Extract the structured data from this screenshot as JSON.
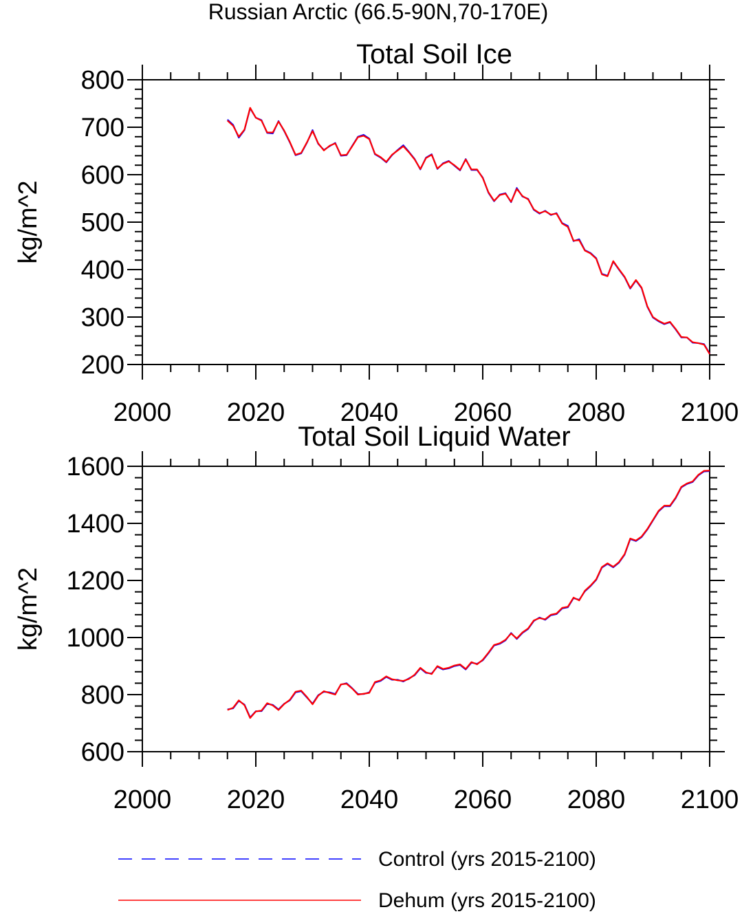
{
  "figure": {
    "suptitle": "Russian Arctic (66.5-90N,70-170E)"
  },
  "legend": [
    {
      "label": "Control (yrs 2015-2100)",
      "color": "#0000ff",
      "dash": "dashed"
    },
    {
      "label": "Dehum (yrs 2015-2100)",
      "color": "#ff0000",
      "dash": "solid"
    }
  ],
  "chart_data": [
    {
      "type": "line",
      "title": "Total Soil Ice",
      "xlabel": "",
      "ylabel": "kg/m^2",
      "xlim": [
        2000,
        2100
      ],
      "ylim": [
        200,
        800
      ],
      "xticks": [
        2000,
        2020,
        2040,
        2060,
        2080,
        2100
      ],
      "yticks": [
        200,
        300,
        400,
        500,
        600,
        700,
        800
      ],
      "grid": false,
      "x": [
        2015,
        2016,
        2017,
        2018,
        2019,
        2020,
        2021,
        2022,
        2023,
        2024,
        2025,
        2026,
        2027,
        2028,
        2029,
        2030,
        2031,
        2032,
        2033,
        2034,
        2035,
        2036,
        2037,
        2038,
        2039,
        2040,
        2041,
        2042,
        2043,
        2044,
        2045,
        2046,
        2047,
        2048,
        2049,
        2050,
        2051,
        2052,
        2053,
        2054,
        2055,
        2056,
        2057,
        2058,
        2059,
        2060,
        2061,
        2062,
        2063,
        2064,
        2065,
        2066,
        2067,
        2068,
        2069,
        2070,
        2071,
        2072,
        2073,
        2074,
        2075,
        2076,
        2077,
        2078,
        2079,
        2080,
        2081,
        2082,
        2083,
        2084,
        2085,
        2086,
        2087,
        2088,
        2089,
        2090,
        2091,
        2092,
        2093,
        2094,
        2095,
        2096,
        2097,
        2098,
        2099,
        2100
      ],
      "series": [
        {
          "name": "Control (yrs 2015-2100)",
          "color": "#0000ff",
          "values": [
            716,
            705,
            678,
            694,
            740,
            720,
            715,
            688,
            687,
            713,
            692,
            668,
            641,
            645,
            667,
            694,
            665,
            652,
            660,
            667,
            640,
            641,
            661,
            680,
            684,
            676,
            643,
            636,
            626,
            641,
            652,
            662,
            648,
            633,
            611,
            636,
            643,
            612,
            624,
            629,
            619,
            609,
            633,
            610,
            610,
            594,
            562,
            544,
            558,
            561,
            542,
            572,
            554,
            549,
            526,
            518,
            524,
            515,
            519,
            498,
            492,
            460,
            464,
            441,
            435,
            424,
            391,
            387,
            417,
            400,
            384,
            360,
            377,
            361,
            322,
            299,
            291,
            285,
            289,
            274,
            257,
            257,
            246,
            245,
            243,
            223
          ]
        },
        {
          "name": "Dehum (yrs 2015-2100)",
          "color": "#ff0000",
          "values": [
            714,
            703,
            680,
            695,
            741,
            720,
            714,
            689,
            689,
            712,
            693,
            669,
            642,
            646,
            668,
            692,
            666,
            651,
            661,
            666,
            641,
            642,
            660,
            679,
            682,
            675,
            644,
            637,
            627,
            642,
            651,
            660,
            647,
            632,
            612,
            635,
            642,
            613,
            623,
            628,
            620,
            610,
            632,
            611,
            611,
            593,
            563,
            545,
            557,
            560,
            543,
            570,
            555,
            548,
            527,
            519,
            523,
            516,
            518,
            497,
            490,
            461,
            462,
            440,
            434,
            423,
            390,
            386,
            418,
            401,
            385,
            361,
            378,
            362,
            323,
            300,
            292,
            286,
            290,
            275,
            258,
            257,
            247,
            245,
            242,
            222
          ]
        }
      ]
    },
    {
      "type": "line",
      "title": "Total Soil Liquid Water",
      "xlabel": "",
      "ylabel": "kg/m^2",
      "xlim": [
        2000,
        2100
      ],
      "ylim": [
        600,
        1600
      ],
      "xticks": [
        2000,
        2020,
        2040,
        2060,
        2080,
        2100
      ],
      "yticks": [
        600,
        800,
        1000,
        1200,
        1400,
        1600
      ],
      "grid": false,
      "x": [
        2015,
        2016,
        2017,
        2018,
        2019,
        2020,
        2021,
        2022,
        2023,
        2024,
        2025,
        2026,
        2027,
        2028,
        2029,
        2030,
        2031,
        2032,
        2033,
        2034,
        2035,
        2036,
        2037,
        2038,
        2039,
        2040,
        2041,
        2042,
        2043,
        2044,
        2045,
        2046,
        2047,
        2048,
        2049,
        2050,
        2051,
        2052,
        2053,
        2054,
        2055,
        2056,
        2057,
        2058,
        2059,
        2060,
        2061,
        2062,
        2063,
        2064,
        2065,
        2066,
        2067,
        2068,
        2069,
        2070,
        2071,
        2072,
        2073,
        2074,
        2075,
        2076,
        2077,
        2078,
        2079,
        2080,
        2081,
        2082,
        2083,
        2084,
        2085,
        2086,
        2087,
        2088,
        2089,
        2090,
        2091,
        2092,
        2093,
        2094,
        2095,
        2096,
        2097,
        2098,
        2099,
        2100
      ],
      "series": [
        {
          "name": "Control (yrs 2015-2100)",
          "color": "#0000ff",
          "values": [
            748,
            752,
            778,
            765,
            720,
            742,
            742,
            768,
            764,
            748,
            768,
            780,
            808,
            812,
            790,
            768,
            798,
            810,
            808,
            802,
            835,
            840,
            822,
            802,
            802,
            808,
            842,
            848,
            862,
            852,
            852,
            846,
            857,
            868,
            892,
            876,
            874,
            898,
            888,
            892,
            900,
            904,
            888,
            912,
            908,
            920,
            945,
            972,
            978,
            990,
            1016,
            995,
            1016,
            1030,
            1058,
            1070,
            1062,
            1078,
            1082,
            1102,
            1106,
            1138,
            1132,
            1162,
            1180,
            1202,
            1245,
            1258,
            1246,
            1262,
            1290,
            1345,
            1338,
            1352,
            1378,
            1410,
            1442,
            1460,
            1460,
            1488,
            1526,
            1538,
            1545,
            1568,
            1582,
            1583
          ]
        },
        {
          "name": "Dehum (yrs 2015-2100)",
          "color": "#ff0000",
          "values": [
            746,
            754,
            780,
            763,
            718,
            741,
            744,
            770,
            762,
            746,
            767,
            782,
            810,
            814,
            792,
            766,
            796,
            812,
            806,
            800,
            836,
            838,
            821,
            800,
            803,
            806,
            844,
            850,
            864,
            854,
            850,
            848,
            855,
            870,
            894,
            878,
            872,
            900,
            890,
            894,
            902,
            906,
            890,
            914,
            906,
            922,
            947,
            974,
            980,
            992,
            1014,
            997,
            1018,
            1032,
            1060,
            1068,
            1064,
            1080,
            1084,
            1104,
            1108,
            1140,
            1130,
            1164,
            1182,
            1204,
            1247,
            1260,
            1248,
            1264,
            1292,
            1347,
            1340,
            1354,
            1380,
            1412,
            1444,
            1462,
            1462,
            1490,
            1528,
            1540,
            1547,
            1570,
            1584,
            1585
          ]
        }
      ]
    }
  ]
}
